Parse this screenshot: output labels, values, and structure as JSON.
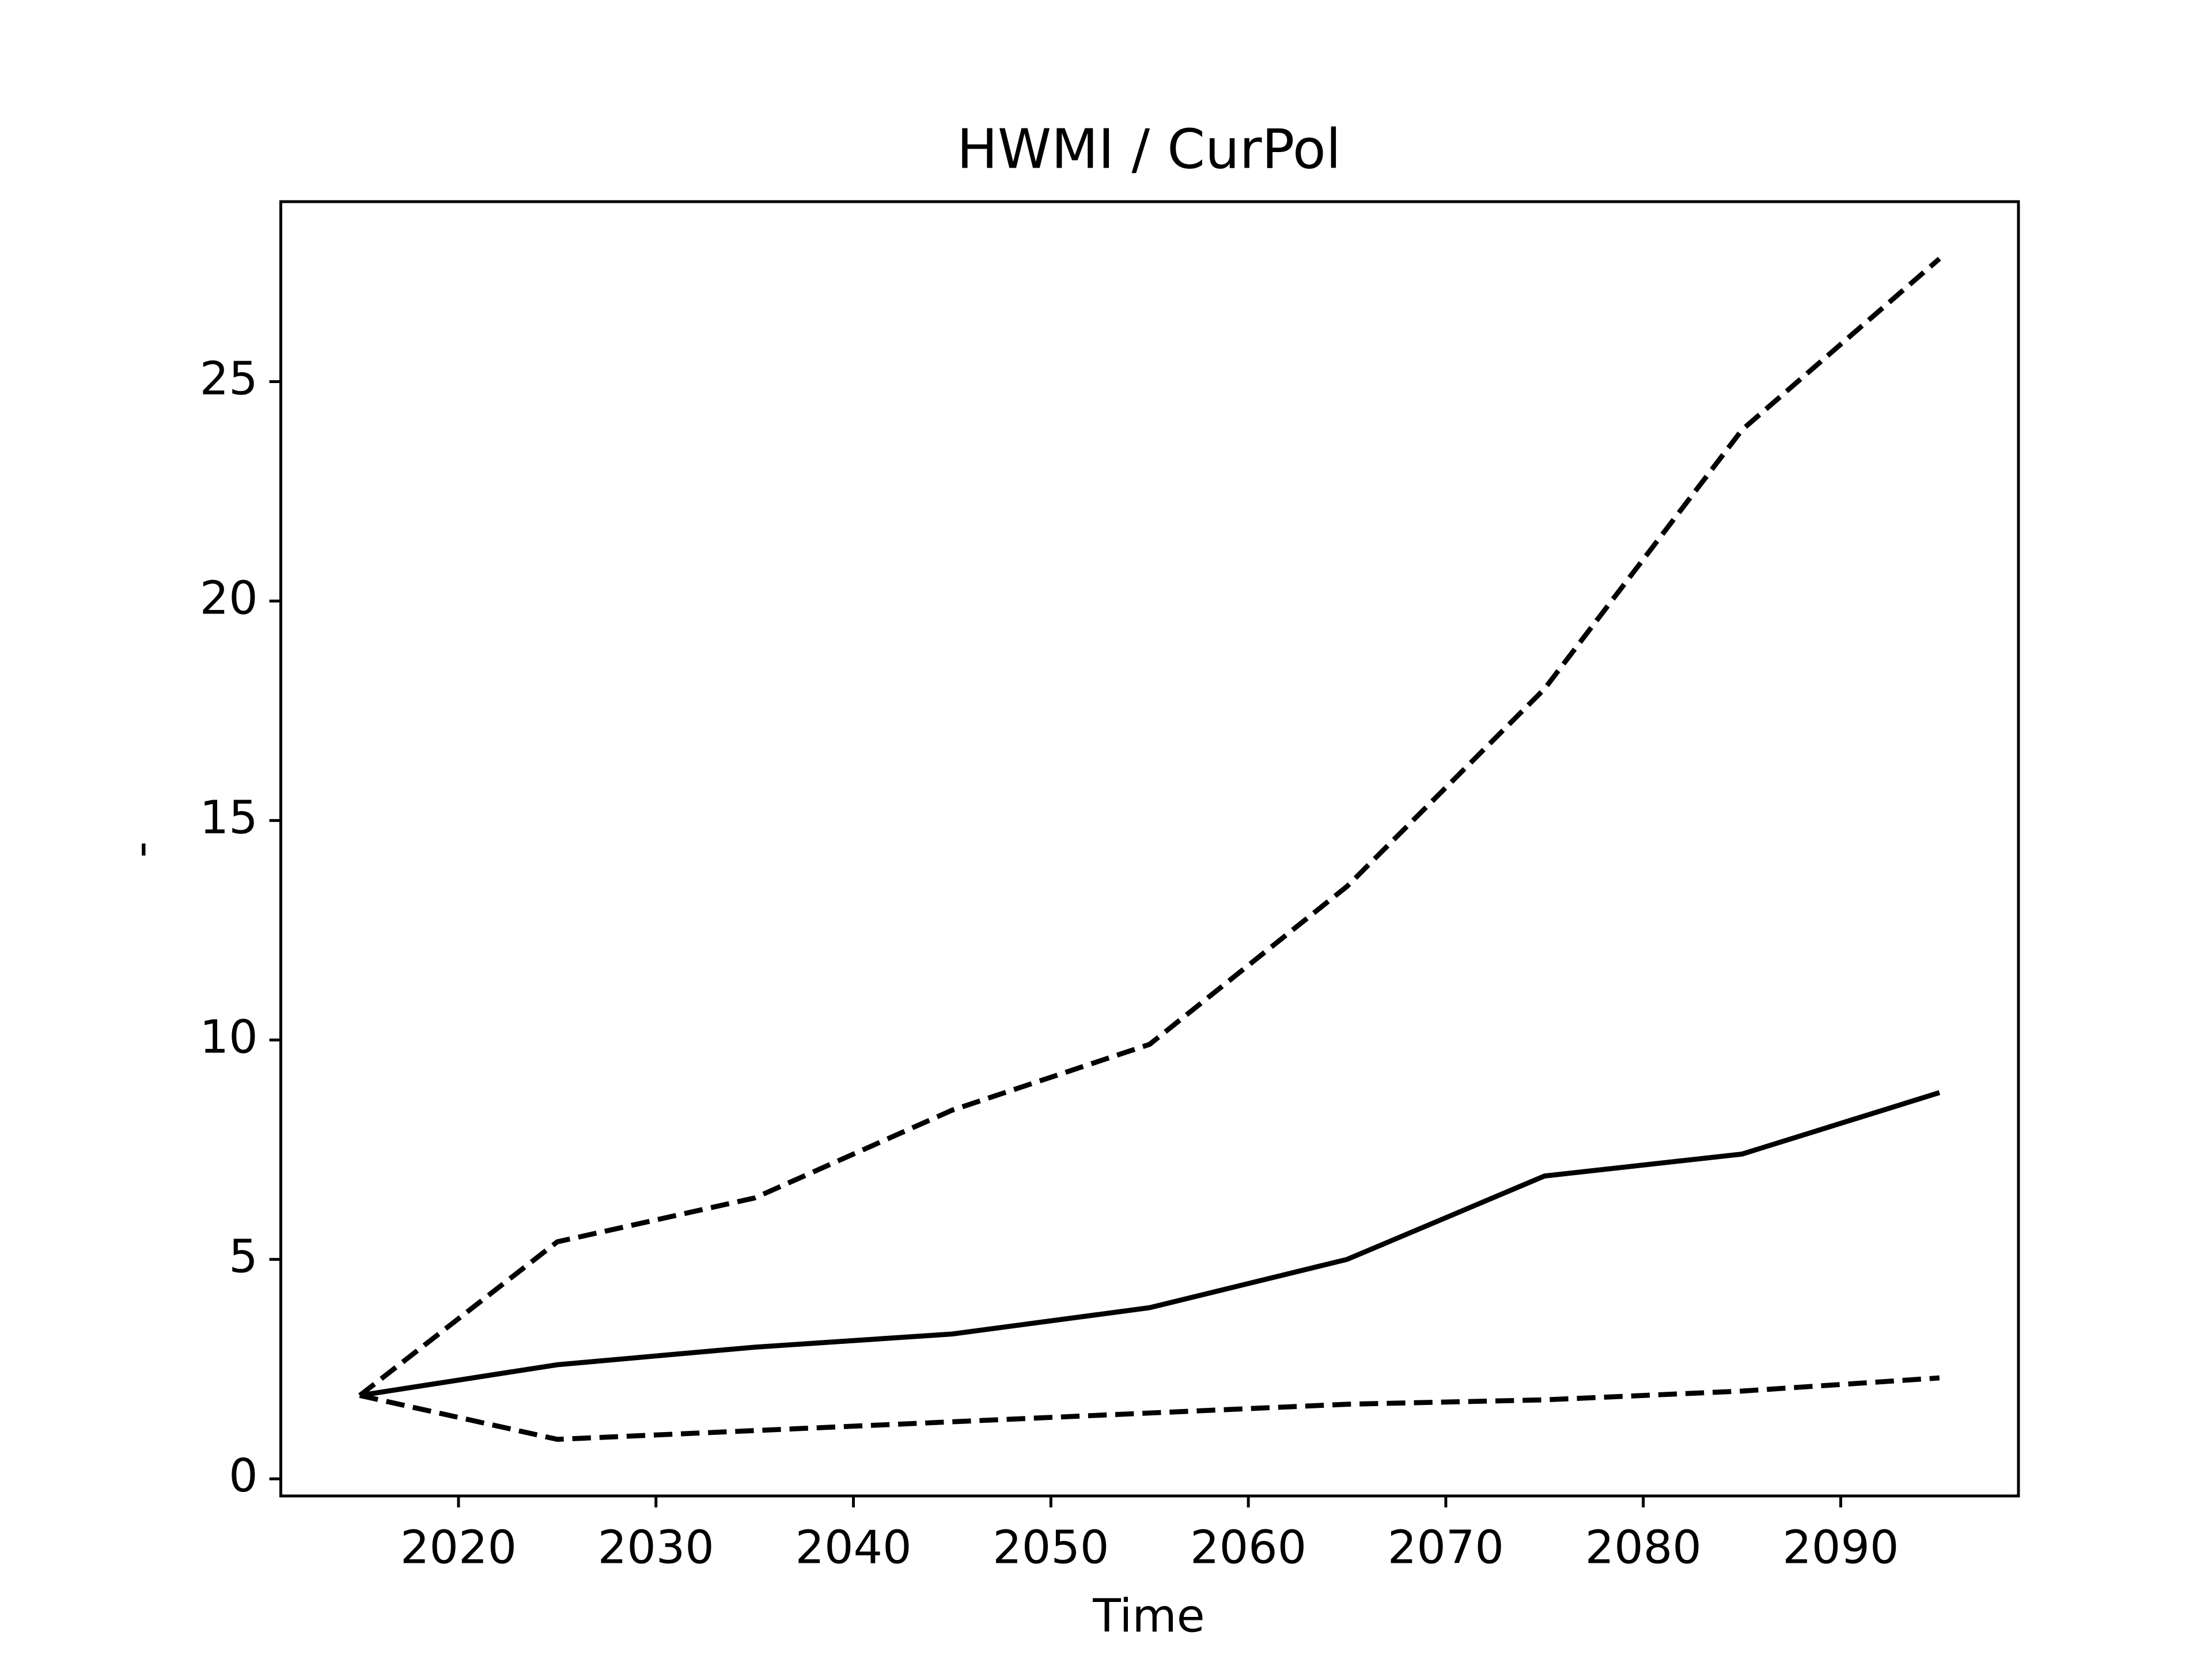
{
  "chart_data": {
    "type": "line",
    "title": "HWMI / CurPol",
    "xlabel": "Time",
    "ylabel": "-",
    "x": [
      2015,
      2025,
      2035,
      2045,
      2055,
      2065,
      2075,
      2085,
      2095
    ],
    "series": [
      {
        "color": "#000000",
        "linestyle": "dashed",
        "values": [
          1.9,
          5.4,
          6.4,
          8.4,
          9.9,
          13.5,
          18.0,
          23.9,
          27.8
        ]
      },
      {
        "color": "#000000",
        "linestyle": "solid",
        "values": [
          1.9,
          2.6,
          3.0,
          3.3,
          3.9,
          5.0,
          6.9,
          7.4,
          8.8
        ]
      },
      {
        "color": "#000000",
        "linestyle": "dashed",
        "values": [
          1.9,
          0.9,
          1.1,
          1.3,
          1.5,
          1.7,
          1.8,
          2.0,
          2.3
        ]
      }
    ],
    "xlim": [
      2011,
      2099
    ],
    "xticks": [
      2020,
      2030,
      2040,
      2050,
      2060,
      2070,
      2080,
      2090
    ],
    "ylim": [
      -0.39,
      29.1
    ],
    "yticks": [
      0,
      5,
      10,
      15,
      20,
      25
    ],
    "grid": false
  }
}
